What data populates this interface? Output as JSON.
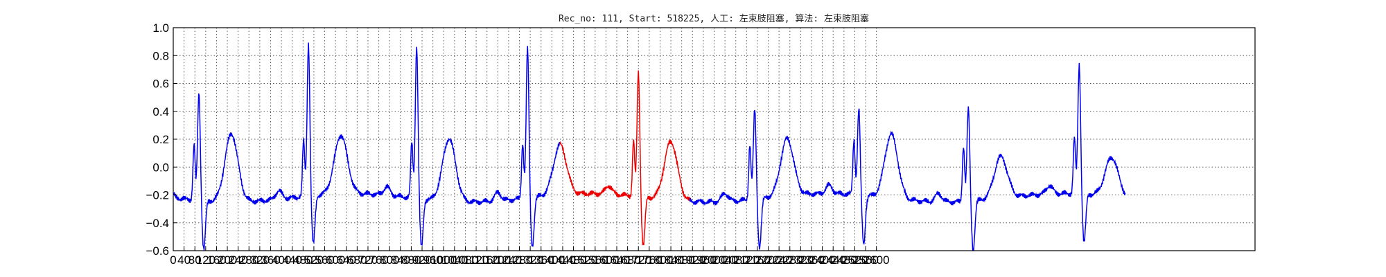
{
  "chart_data": {
    "type": "line",
    "title": "Rec_no: 111, Start: 518225, 人工: 左束肢阻塞, 算法: 左束肢阻塞",
    "xlabel": "",
    "ylabel": "",
    "xlim": [
      0,
      4000
    ],
    "ylim": [
      -0.6,
      1.0
    ],
    "grid": true,
    "x_ticks": [
      0,
      40,
      80,
      120,
      160,
      200,
      240,
      280,
      320,
      360,
      400,
      440,
      480,
      520,
      560,
      600,
      640,
      680,
      720,
      760,
      800,
      840,
      880,
      920,
      960,
      1000,
      1040,
      1080,
      1120,
      1160,
      1200,
      1240,
      1280,
      1320,
      1360,
      1400,
      1440,
      1480,
      1520,
      1560,
      1600,
      1640,
      1680,
      1720,
      1760,
      1800,
      1840,
      1880,
      1920,
      1960,
      2000,
      2040,
      2080,
      2120,
      2160,
      2200,
      2240,
      2280,
      2320,
      2360,
      2400,
      2440,
      2480,
      2520,
      2560,
      2600
    ],
    "y_ticks": [
      "−0.6",
      "−0.4",
      "−0.2",
      "0.0",
      "0.2",
      "0.4",
      "0.6",
      "0.8",
      "1.0"
    ],
    "y_tick_values": [
      -0.6,
      -0.4,
      -0.2,
      0.0,
      0.2,
      0.4,
      0.6,
      0.8,
      1.0
    ],
    "colors": {
      "normal": "#0000ee",
      "highlight": "#ee0000"
    },
    "x_max_data": 3520,
    "highlight_range": [
      1430,
      1910
    ],
    "beats": [
      {
        "r": 95,
        "rAmp": 0.68,
        "tAmp": 0.21
      },
      {
        "r": 500,
        "rAmp": 1.0,
        "tAmp": 0.14
      },
      {
        "r": 900,
        "rAmp": 1.0,
        "tAmp": 0.17
      },
      {
        "r": 1310,
        "rAmp": 0.98,
        "tAmp": 0.08
      },
      {
        "r": 1720,
        "rAmp": 0.8,
        "tAmp": 0.14
      },
      {
        "r": 2150,
        "rAmp": 0.55,
        "tAmp": 0.13
      },
      {
        "r": 2535,
        "rAmp": 0.52,
        "tAmp": 0.18
      },
      {
        "r": 2940,
        "rAmp": 0.57,
        "tAmp": 0.02
      },
      {
        "r": 3350,
        "rAmp": 0.84,
        "tAmp": 0.0
      }
    ]
  }
}
